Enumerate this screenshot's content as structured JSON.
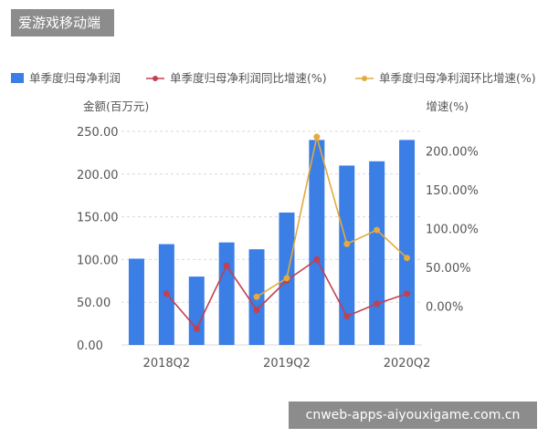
{
  "header": {
    "badge": "爱游戏移动端"
  },
  "footer": {
    "badge": "cnweb-apps-aiyouxigame.com.cn"
  },
  "colors": {
    "bar": "#3a7ee6",
    "yoy_line": "#c2404f",
    "qoq_line": "#e3aa3c",
    "grid": "#d9d9d9",
    "axis_text": "#555555"
  },
  "chart_data": {
    "type": "bar",
    "legend_position": "top",
    "grid": true,
    "left_axis": {
      "title": "金额(百万元)",
      "ylim": [
        0,
        250
      ],
      "tick_labels": [
        "0.00",
        "50.00",
        "100.00",
        "150.00",
        "200.00",
        "250.00"
      ],
      "tick_values": [
        0,
        50,
        100,
        150,
        200,
        250
      ]
    },
    "right_axis": {
      "title": "增速(%)",
      "ylim": [
        -50,
        225
      ],
      "tick_labels": [
        "0.00%",
        "50.00%",
        "100.00%",
        "150.00%",
        "200.00%"
      ],
      "tick_values": [
        0,
        50,
        100,
        150,
        200
      ]
    },
    "x_tick_labels": [
      "2018Q2",
      "2019Q2",
      "2020Q2"
    ],
    "x_tick_positions": [
      1,
      5,
      9
    ],
    "series": [
      {
        "name": "单季度归母净利润",
        "type": "bar",
        "axis": "left",
        "values": [
          101,
          118,
          80,
          120,
          112,
          155,
          240,
          210,
          215,
          240
        ]
      },
      {
        "name": "单季度归母净利润同比增速(%)",
        "type": "line",
        "axis": "right",
        "values": [
          16,
          -29,
          52,
          -5,
          33,
          60,
          -13,
          3,
          16
        ]
      },
      {
        "name": "单季度归母净利润环比增速(%)",
        "type": "line",
        "axis": "right",
        "values": [
          12,
          36,
          218,
          80,
          98,
          62
        ]
      }
    ],
    "line_start_index": {
      "yoy": 1,
      "qoq": 4
    }
  }
}
